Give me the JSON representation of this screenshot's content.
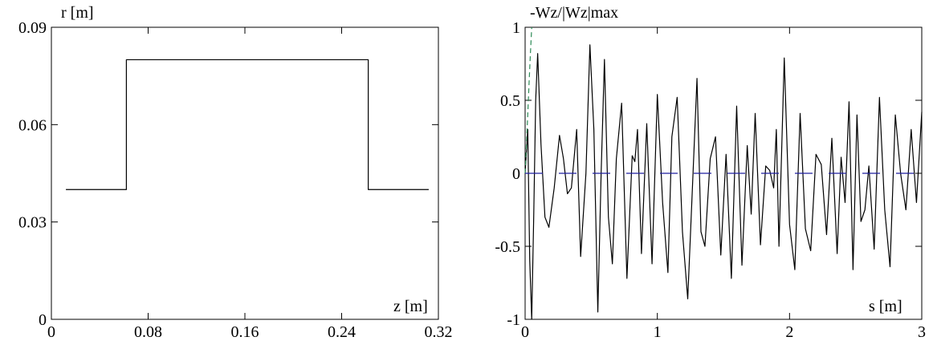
{
  "chart_data": [
    {
      "type": "line",
      "title": "",
      "xlabel": "z [m]",
      "ylabel": "r [m]",
      "xlim": [
        0,
        0.32
      ],
      "ylim": [
        0,
        0.09
      ],
      "xticks": [
        "0",
        "0.08",
        "0.16",
        "0.24",
        "0.32"
      ],
      "yticks": [
        "0",
        "0.03",
        "0.06",
        "0.09"
      ],
      "grid": false,
      "series": [
        {
          "color": "#000000",
          "x": [
            0.012,
            0.062,
            0.062,
            0.262,
            0.262,
            0.312
          ],
          "y": [
            0.04,
            0.04,
            0.08,
            0.08,
            0.04,
            0.04
          ]
        }
      ]
    },
    {
      "type": "line",
      "title": "",
      "xlabel": "s [m]",
      "ylabel": "-Wz/|Wz|max",
      "xlim": [
        0,
        3
      ],
      "ylim": [
        -1,
        1
      ],
      "xticks": [
        "0",
        "1",
        "2",
        "3"
      ],
      "yticks": [
        "-1",
        "-0.5",
        "0",
        "0.5",
        "1"
      ],
      "grid": false,
      "series": [
        {
          "color": "#000000",
          "style": "solid",
          "x": [
            0.0,
            0.02,
            0.035,
            0.05,
            0.065,
            0.08,
            0.095,
            0.12,
            0.15,
            0.18,
            0.22,
            0.26,
            0.29,
            0.32,
            0.35,
            0.39,
            0.42,
            0.46,
            0.49,
            0.52,
            0.55,
            0.575,
            0.6,
            0.63,
            0.66,
            0.69,
            0.73,
            0.77,
            0.81,
            0.83,
            0.85,
            0.88,
            0.92,
            0.96,
            1.0,
            1.04,
            1.08,
            1.11,
            1.15,
            1.19,
            1.23,
            1.27,
            1.3,
            1.33,
            1.36,
            1.4,
            1.44,
            1.48,
            1.52,
            1.56,
            1.6,
            1.64,
            1.68,
            1.71,
            1.74,
            1.78,
            1.82,
            1.85,
            1.88,
            1.9,
            1.92,
            1.96,
            2.0,
            2.04,
            2.08,
            2.12,
            2.16,
            2.2,
            2.24,
            2.28,
            2.32,
            2.36,
            2.39,
            2.42,
            2.45,
            2.48,
            2.51,
            2.54,
            2.57,
            2.6,
            2.64,
            2.68,
            2.72,
            2.76,
            2.8,
            2.84,
            2.88,
            2.92,
            2.96,
            3.0
          ],
          "y": [
            0.0,
            0.3,
            -0.6,
            -1.0,
            -0.3,
            0.5,
            0.82,
            0.2,
            -0.3,
            -0.37,
            -0.1,
            0.26,
            0.1,
            -0.14,
            -0.1,
            0.3,
            -0.57,
            0.0,
            0.88,
            0.3,
            -0.95,
            0.0,
            0.78,
            -0.3,
            -0.62,
            0.1,
            0.48,
            -0.72,
            0.12,
            0.08,
            0.3,
            -0.55,
            0.34,
            -0.62,
            0.54,
            -0.2,
            -0.68,
            0.25,
            0.52,
            -0.4,
            -0.86,
            0.0,
            0.65,
            -0.4,
            -0.5,
            0.1,
            0.25,
            -0.56,
            0.13,
            -0.72,
            0.46,
            -0.63,
            0.19,
            -0.28,
            0.41,
            -0.49,
            0.05,
            0.02,
            -0.1,
            0.3,
            -0.5,
            0.79,
            -0.35,
            -0.66,
            0.41,
            -0.38,
            -0.53,
            0.13,
            0.06,
            -0.42,
            0.24,
            -0.55,
            0.11,
            -0.2,
            0.49,
            -0.66,
            0.4,
            -0.33,
            -0.25,
            0.05,
            -0.52,
            0.52,
            -0.25,
            -0.64,
            0.4,
            0.0,
            -0.25,
            0.3,
            -0.2,
            0.42
          ]
        },
        {
          "color": "#2e8b57",
          "style": "dashed",
          "x": [
            0.0,
            0.01,
            0.02,
            0.03,
            0.04,
            0.05
          ],
          "y": [
            0.0,
            0.2,
            0.4,
            0.62,
            0.82,
            1.0
          ]
        },
        {
          "color": "#1f1f9f",
          "style": "dashed",
          "x": [
            0.0,
            3.0
          ],
          "y": [
            0.0,
            0.0
          ]
        }
      ]
    }
  ]
}
